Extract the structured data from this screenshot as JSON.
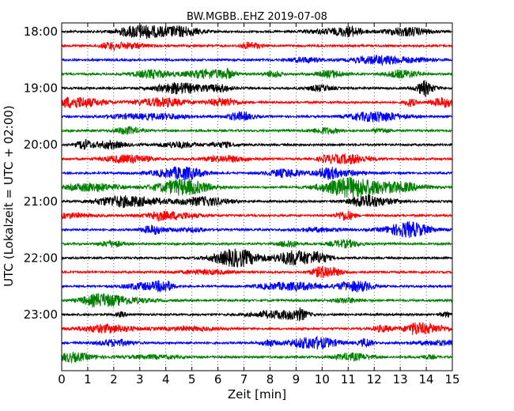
{
  "chart_data": {
    "type": "line",
    "title": "BW.MGBB..EHZ 2019-07-08",
    "xlabel": "Zeit  [min]",
    "ylabel": "UTC (Lokalzeit = UTC + 02:00)",
    "xlim": [
      0,
      15
    ],
    "x_ticks": [
      0,
      1,
      2,
      3,
      4,
      5,
      6,
      7,
      8,
      9,
      10,
      11,
      12,
      13,
      14,
      15
    ],
    "x_tick_labels": [
      "0",
      "1",
      "2",
      "3",
      "4",
      "5",
      "6",
      "7",
      "8",
      "9",
      "10",
      "11",
      "12",
      "13",
      "14",
      "15"
    ],
    "y_ticks": [
      {
        "row": 0,
        "label": "18:00"
      },
      {
        "row": 4,
        "label": "19:00"
      },
      {
        "row": 8,
        "label": "20:00"
      },
      {
        "row": 12,
        "label": "21:00"
      },
      {
        "row": 16,
        "label": "22:00"
      },
      {
        "row": 20,
        "label": "23:00"
      }
    ],
    "trace_interval_min": 15,
    "num_traces": 24,
    "color_cycle": [
      "#000000",
      "#ff0000",
      "#0000ff",
      "#008000"
    ],
    "grid": "vertical dotted lines at each minute",
    "legend": "none"
  }
}
